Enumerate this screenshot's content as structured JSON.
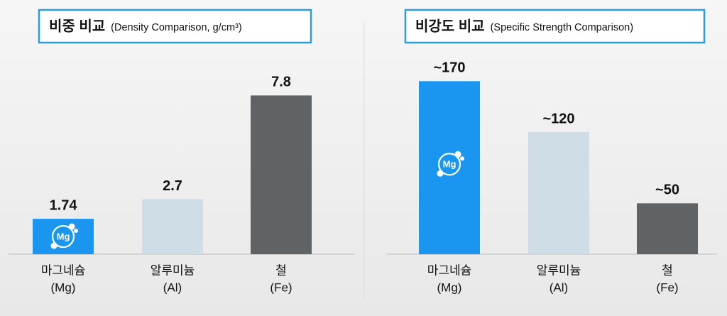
{
  "chart_data": [
    {
      "type": "bar",
      "title": "비중 비교",
      "subtitle": "(Density Comparison, g/cm³)",
      "categories": [
        [
          "마그네슘",
          "(Mg)"
        ],
        [
          "알루미늄",
          "(Al)"
        ],
        [
          "철",
          "(Fe)"
        ]
      ],
      "values": [
        1.74,
        2.7,
        7.8
      ],
      "colors": [
        "#1a96f0",
        "#cfdde6",
        "#606366"
      ],
      "icon_label": "Mg",
      "ylim": [
        0,
        9
      ]
    },
    {
      "type": "bar",
      "title": "비강도 비교",
      "subtitle": "(Specific Strength Comparison)",
      "categories": [
        [
          "마그네슘",
          "(Mg)"
        ],
        [
          "알루미늄",
          "(Al)"
        ],
        [
          "철",
          "(Fe)"
        ]
      ],
      "values": [
        170,
        120,
        50
      ],
      "value_labels": [
        "~170",
        "~120",
        "~50"
      ],
      "colors": [
        "#1a96f0",
        "#cfdde6",
        "#606366"
      ],
      "icon_label": "Mg",
      "ylim": [
        0,
        180
      ]
    }
  ]
}
